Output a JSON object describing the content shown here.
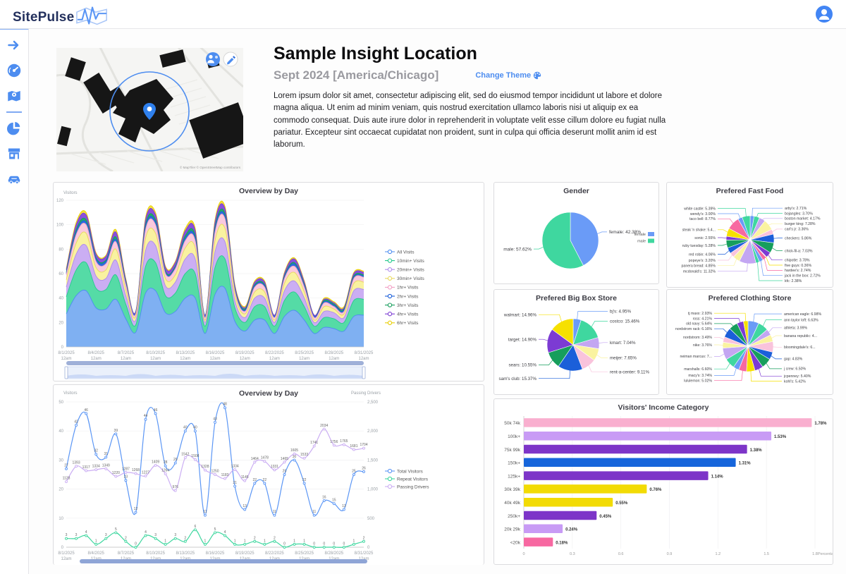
{
  "header": {
    "brand": "SitePulse",
    "avatar_icon": "user-avatar"
  },
  "sidebar": {
    "icons": [
      "collapse-arrow",
      "dashboard-gauge",
      "map-location",
      "pie-chart",
      "store",
      "car"
    ]
  },
  "hero": {
    "title": "Sample Insight Location",
    "subtitle": "Sept 2024 [America/Chicago]",
    "change_theme_label": "Change Theme",
    "description": "Lorem ipsum dolor sit amet, consectetur adipiscing elit, sed do eiusmod tempor incididunt ut labore et dolore magna aliqua. Ut enim ad minim veniam, quis nostrud exercitation ullamco laboris nisi ut aliquip ex ea commodo consequat. Duis aute irure dolor in reprehenderit in voluptate velit esse cillum dolore eu fugiat nulla pariatur. Excepteur sint occaecat cupidatat non proident, sunt in culpa qui officia deserunt mollit anim id est laborum.",
    "map_attribution": "© MapTiler © OpenStreetMap contributors"
  },
  "colors": {
    "accent": "#4d8df0",
    "palette": [
      "#6A9BF7",
      "#3FD79F",
      "#C3A6F2",
      "#FAF3A0",
      "#F9C3DC",
      "#1B5FD9",
      "#169E5C",
      "#7C3BD3",
      "#F6E000",
      "#F768A1"
    ]
  },
  "chart_data": [
    {
      "type": "area",
      "title": "Overview by Day",
      "ylabel": "Visitors",
      "ylim": [
        0,
        120
      ],
      "yticks": [
        0,
        20,
        40,
        60,
        80,
        100,
        120
      ],
      "x_labels": [
        "8/1/2025",
        "8/4/2025",
        "8/7/2025",
        "8/10/2025",
        "8/13/2025",
        "8/16/2025",
        "8/19/2025",
        "8/22/2025",
        "8/25/2025",
        "8/28/2025",
        "8/31/2025"
      ],
      "x_minor": "12am",
      "series": [
        {
          "name": "All Visits",
          "color": "#7FB0F2",
          "line": "#4D8DF0",
          "values": [
            27,
            42,
            46,
            32,
            31,
            39,
            23,
            12,
            44,
            46,
            28,
            29,
            40,
            40,
            11,
            43,
            48,
            21,
            13,
            22,
            22,
            11,
            25,
            30,
            22,
            11,
            16,
            15,
            13,
            25,
            26
          ]
        },
        {
          "name": "10min+ Visits",
          "color": "#55DBA6",
          "line": "#26C98D",
          "values": [
            14,
            21,
            23,
            16,
            16,
            20,
            12,
            6,
            22,
            23,
            14,
            15,
            20,
            20,
            6,
            22,
            24,
            11,
            7,
            11,
            11,
            6,
            13,
            15,
            11,
            6,
            8,
            8,
            7,
            13,
            13
          ]
        },
        {
          "name": "20min+ Visits",
          "color": "#CBAEF3",
          "line": "#AF8BEB",
          "values": [
            8,
            13,
            14,
            10,
            9,
            12,
            7,
            4,
            13,
            14,
            8,
            9,
            12,
            12,
            3,
            13,
            14,
            6,
            4,
            7,
            7,
            3,
            8,
            9,
            7,
            3,
            5,
            5,
            4,
            8,
            8
          ]
        },
        {
          "name": "30min+ Visits",
          "color": "#F9F2A0",
          "line": "#E8D95E",
          "values": [
            6,
            9,
            10,
            7,
            7,
            9,
            5,
            3,
            10,
            10,
            6,
            6,
            9,
            9,
            2,
            9,
            11,
            5,
            3,
            5,
            5,
            2,
            6,
            7,
            5,
            2,
            4,
            3,
            3,
            6,
            6
          ]
        },
        {
          "name": "1hr+ Visits",
          "color": "#F9C9DE",
          "line": "#F29FC4",
          "values": [
            4,
            7,
            7,
            5,
            5,
            6,
            4,
            2,
            7,
            7,
            4,
            5,
            6,
            6,
            2,
            7,
            8,
            3,
            2,
            4,
            4,
            2,
            4,
            5,
            4,
            2,
            3,
            2,
            2,
            4,
            4
          ]
        },
        {
          "name": "2hr+ Visits",
          "color": "#2F6EDC",
          "line": "#1B5FD9",
          "values": [
            1,
            2,
            2,
            2,
            2,
            2,
            1,
            1,
            2,
            2,
            1,
            1,
            2,
            2,
            1,
            2,
            2,
            1,
            1,
            1,
            1,
            1,
            1,
            2,
            1,
            1,
            1,
            1,
            1,
            1,
            1
          ]
        },
        {
          "name": "3hr+ Visits",
          "color": "#23AA69",
          "line": "#169E5C",
          "values": [
            1,
            2,
            2,
            1,
            1,
            2,
            1,
            0,
            2,
            2,
            1,
            1,
            2,
            2,
            0,
            2,
            2,
            1,
            1,
            1,
            1,
            0,
            1,
            1,
            1,
            0,
            1,
            1,
            1,
            1,
            1
          ]
        },
        {
          "name": "4hr+ Visits",
          "color": "#8A50DA",
          "line": "#7C3BD3",
          "values": [
            2,
            4,
            4,
            3,
            3,
            4,
            2,
            1,
            4,
            4,
            3,
            3,
            4,
            4,
            1,
            4,
            4,
            2,
            1,
            2,
            2,
            1,
            2,
            3,
            2,
            1,
            1,
            1,
            1,
            2,
            2
          ]
        },
        {
          "name": "6hr+ Visits",
          "color": "#F4E13C",
          "line": "#E8CE00",
          "values": [
            1,
            2,
            2,
            1,
            1,
            2,
            1,
            0,
            2,
            2,
            1,
            1,
            2,
            2,
            0,
            2,
            2,
            1,
            1,
            1,
            1,
            0,
            1,
            1,
            1,
            0,
            1,
            1,
            1,
            1,
            1
          ]
        }
      ]
    },
    {
      "type": "pie",
      "title": "Gender",
      "slices": [
        {
          "name": "female",
          "value": 42.38,
          "label": "female: 42.38%",
          "color": "#6A9BF7"
        },
        {
          "name": "male",
          "value": 57.62,
          "label": "male: 57.62%",
          "color": "#3FD79F"
        }
      ],
      "legend": [
        {
          "label": "female",
          "color": "#6A9BF7"
        },
        {
          "label": "male",
          "color": "#3FD79F"
        }
      ]
    },
    {
      "type": "pie",
      "title": "Prefered Fast Food",
      "slices": [
        {
          "name": "arby's",
          "value": 2.71,
          "label": "arby's: 2.71%",
          "color": "#6A9BF7"
        },
        {
          "name": "bojangles",
          "value": 3.7,
          "label": "bojangles: 3.70%",
          "color": "#3FD79F"
        },
        {
          "name": "boston market",
          "value": 4.17,
          "label": "boston market: 4.17%",
          "color": "#C3A6F2"
        },
        {
          "name": "burger king",
          "value": 7.28,
          "label": "burger king: 7.28%",
          "color": "#FAF3A0"
        },
        {
          "name": "carl's jr",
          "value": 3.36,
          "label": "carl's jr: 3.36%",
          "color": "#F9C3DC"
        },
        {
          "name": "checkers",
          "value": 5.86,
          "label": "checkers: 5.86%",
          "color": "#1B5FD9"
        },
        {
          "name": "chick-fil-a",
          "value": 7.03,
          "label": "chick-fil-a: 7.03%",
          "color": "#169E5C"
        },
        {
          "name": "chipotle",
          "value": 3.78,
          "label": "chipotle: 3.78%",
          "color": "#7C3BD3"
        },
        {
          "name": "five guys",
          "value": 0.36,
          "label": "five guys: 0.36%",
          "color": "#F6E000"
        },
        {
          "name": "hardee's",
          "value": 2.74,
          "label": "hardee's: 2.74%",
          "color": "#F768A1"
        },
        {
          "name": "jack in the box",
          "value": 2.72,
          "label": "jack in the box: 2.72%",
          "color": "#6A9BF7"
        },
        {
          "name": "kfc",
          "value": 2.38,
          "label": "kfc: 2.38%",
          "color": "#3FD79F"
        },
        {
          "name": "mcdonald's",
          "value": 11.32,
          "label": "mcdonald's: 11.32%",
          "color": "#C3A6F2"
        },
        {
          "name": "panera bread",
          "value": 4.85,
          "label": "panera bread: 4.85%",
          "color": "#FAF3A0"
        },
        {
          "name": "popeye's",
          "value": 3.2,
          "label": "popeye's: 3.20%",
          "color": "#F9C3DC"
        },
        {
          "name": "red robin",
          "value": 4.06,
          "label": "red robin: 4.06%",
          "color": "#1B5FD9"
        },
        {
          "name": "ruby tuesday",
          "value": 5.28,
          "label": "ruby tuesday: 5.28%",
          "color": "#169E5C"
        },
        {
          "name": "sonic",
          "value": 2.55,
          "label": "sonic: 2.55%",
          "color": "#7C3BD3"
        },
        {
          "name": "steak 'n shake",
          "value": 5.49,
          "label": "steak 'n shake: 5.4...",
          "color": "#F6E000"
        },
        {
          "name": "taco bell",
          "value": 8.77,
          "label": "taco bell: 8.77%",
          "color": "#F768A1"
        },
        {
          "name": "wendy's",
          "value": 3.0,
          "label": "wendy's: 3.00%",
          "color": "#6A9BF7"
        },
        {
          "name": "white castle",
          "value": 5.39,
          "label": "white castle: 5.39%",
          "color": "#3FD79F"
        }
      ]
    },
    {
      "type": "pie",
      "title": "Prefered Big Box Store",
      "slices": [
        {
          "name": "bj's",
          "value": 4.95,
          "label": "bj's: 4.95%",
          "color": "#6A9BF7"
        },
        {
          "name": "costco",
          "value": 15.46,
          "label": "costco: 15.46%",
          "color": "#3FD79F"
        },
        {
          "name": "kmart",
          "value": 7.04,
          "label": "kmart: 7.04%",
          "color": "#C3A6F2"
        },
        {
          "name": "meijer",
          "value": 7.65,
          "label": "meijer: 7.65%",
          "color": "#FAF3A0"
        },
        {
          "name": "rent-a-center",
          "value": 9.11,
          "label": "rent-a-center: 9.11%",
          "color": "#F9C3DC"
        },
        {
          "name": "sam's club",
          "value": 15.37,
          "label": "sam's club: 15.37%",
          "color": "#1B5FD9"
        },
        {
          "name": "sears",
          "value": 10.55,
          "label": "sears: 10.55%",
          "color": "#169E5C"
        },
        {
          "name": "target",
          "value": 14.9,
          "label": "target: 14.90%",
          "color": "#7C3BD3"
        },
        {
          "name": "walmart",
          "value": 14.96,
          "label": "walmart: 14.96%",
          "color": "#F6E000"
        }
      ]
    },
    {
      "type": "pie",
      "title": "Prefered Clothing Store",
      "slices": [
        {
          "name": "american eagle",
          "value": 6.98,
          "label": "american eagle: 6.98%",
          "color": "#6A9BF7"
        },
        {
          "name": "ann taylor loft",
          "value": 6.63,
          "label": "ann taylor loft: 6.63%",
          "color": "#3FD79F"
        },
        {
          "name": "athleta",
          "value": 3.99,
          "label": "athleta: 3.99%",
          "color": "#C3A6F2"
        },
        {
          "name": "banana republic",
          "value": 4.45,
          "label": "banana republic: 4...",
          "color": "#FAF3A0"
        },
        {
          "name": "bloomingdale's",
          "value": 6.75,
          "label": "bloomingdale's: 6...",
          "color": "#F9C3DC"
        },
        {
          "name": "gap",
          "value": 4.83,
          "label": "gap: 4.83%",
          "color": "#1B5FD9"
        },
        {
          "name": "j crew",
          "value": 6.5,
          "label": "j crew: 6.50%",
          "color": "#169E5C"
        },
        {
          "name": "jcpenney",
          "value": 5.4,
          "label": "jcpenney: 5.40%",
          "color": "#7C3BD3"
        },
        {
          "name": "kohl's",
          "value": 5.42,
          "label": "kohl's: 5.42%",
          "color": "#F6E000"
        },
        {
          "name": "lululemon",
          "value": 5.02,
          "label": "lululemon: 5.02%",
          "color": "#F768A1"
        },
        {
          "name": "macy's",
          "value": 3.74,
          "label": "macy's: 3.74%",
          "color": "#6A9BF7"
        },
        {
          "name": "marshalls",
          "value": 6.6,
          "label": "marshalls: 6.60%",
          "color": "#3FD79F"
        },
        {
          "name": "neiman marcus",
          "value": 7.5,
          "label": "neiman marcus: 7...",
          "color": "#C3A6F2"
        },
        {
          "name": "nike",
          "value": 3.76,
          "label": "nike: 3.76%",
          "color": "#FAF3A0"
        },
        {
          "name": "nordstrom",
          "value": 3.49,
          "label": "nordstrom: 3.49%",
          "color": "#F9C3DC"
        },
        {
          "name": "nordstrom rack",
          "value": 6.16,
          "label": "nordstrom rack: 6.16%",
          "color": "#1B5FD9"
        },
        {
          "name": "old navy",
          "value": 5.64,
          "label": "old navy: 5.64%",
          "color": "#169E5C"
        },
        {
          "name": "ross",
          "value": 4.21,
          "label": "ross: 4.21%",
          "color": "#7C3BD3"
        },
        {
          "name": "tj maxx",
          "value": 2.93,
          "label": "tj maxx: 2.93%",
          "color": "#F6E000"
        }
      ]
    },
    {
      "type": "line",
      "title": "Overview by Day",
      "left": {
        "label": "Visitors",
        "max": 50,
        "ticks": [
          0,
          10,
          20,
          30,
          40,
          50
        ]
      },
      "right": {
        "label": "Passing Drivers",
        "max": 2500,
        "ticks": [
          {
            "value": 0,
            "label": "0"
          },
          {
            "value": 500,
            "label": "500"
          },
          {
            "value": 1000,
            "label": "1,000"
          },
          {
            "value": 1500,
            "label": "1,500"
          },
          {
            "value": 2000,
            "label": "2,000"
          },
          {
            "value": 2500,
            "label": "2,500"
          }
        ]
      },
      "x_labels": [
        "8/1/2025",
        "8/4/2025",
        "8/7/2025",
        "8/10/2025",
        "8/13/2025",
        "8/16/2025",
        "8/19/2025",
        "8/22/2025",
        "8/25/2025",
        "8/28/2025",
        "8/31/2025"
      ],
      "x_minor": "12am",
      "series": [
        {
          "name": "Total Visitors",
          "axis": "left",
          "color": "#5B96F5",
          "values": [
            27,
            42,
            46,
            32,
            31,
            39,
            23,
            12,
            44,
            46,
            28,
            29,
            40,
            40,
            11,
            43,
            48,
            21,
            13,
            22,
            22,
            11,
            25,
            30,
            22,
            11,
            16,
            15,
            13,
            25,
            26
          ]
        },
        {
          "name": "Repeat Visitors",
          "axis": "left",
          "color": "#3FD79F",
          "values": [
            3,
            3,
            4,
            1,
            3,
            5,
            2,
            0,
            4,
            3,
            1,
            3,
            2,
            6,
            1,
            5,
            4,
            1,
            1,
            2,
            1,
            2,
            0,
            1,
            1,
            0,
            0,
            0,
            0,
            1,
            2
          ]
        },
        {
          "name": "Passing Drivers",
          "axis": "right",
          "color": "#CBAEF3",
          "values": [
            1128,
            1393,
            1317,
            1334,
            1349,
            1220,
            1287,
            1268,
            1227,
            1409,
            1264,
            976,
            1542,
            1508,
            1328,
            1250,
            1183,
            1334,
            1145,
            1464,
            1478,
            1331,
            1465,
            1605,
            1533,
            1741,
            2034,
            1756,
            1765,
            1681,
            1704
          ]
        }
      ]
    },
    {
      "type": "bar",
      "title": "Visitors' Income Category",
      "xlabel": "Percentage",
      "xticks": [
        "0",
        "0.3",
        "0.6",
        "0.9",
        "1.2",
        "1.5",
        "1.8"
      ],
      "xmax": 1.8,
      "categories": [
        "50k 74k",
        "100k+",
        "75k 99k",
        "150k+",
        "125k+",
        "30k 39k",
        "40k 49k",
        "250k+",
        "20k 29k",
        "<20k"
      ],
      "values": [
        1.78,
        1.53,
        1.38,
        1.31,
        1.14,
        0.76,
        0.55,
        0.45,
        0.24,
        0.18
      ],
      "labels": [
        "1.78%",
        "1.53%",
        "1.38%",
        "1.31%",
        "1.14%",
        "0.76%",
        "0.55%",
        "0.45%",
        "0.24%",
        "0.18%"
      ],
      "bar_colors": [
        "#F9AFCF",
        "#C89BF5",
        "#7D35C8",
        "#1665DB",
        "#7D35C8",
        "#F2DB05",
        "#F2DB05",
        "#7D35C8",
        "#C89BF5",
        "#F768A1"
      ]
    }
  ]
}
